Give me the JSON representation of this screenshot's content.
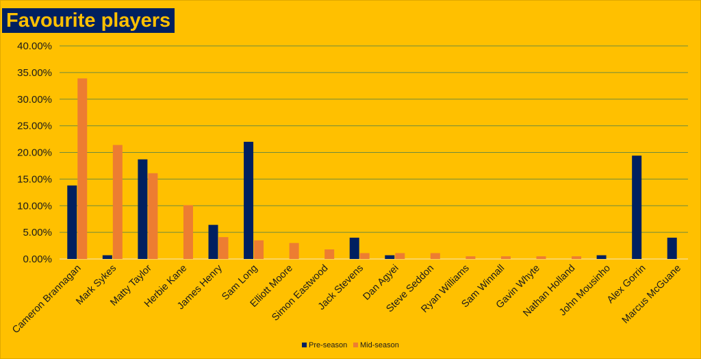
{
  "chart_data": {
    "type": "bar",
    "title": "Favourite players",
    "xlabel": "",
    "ylabel": "",
    "ylim": [
      0,
      40
    ],
    "yticks": [
      "0.00%",
      "5.00%",
      "10.00%",
      "15.00%",
      "20.00%",
      "25.00%",
      "30.00%",
      "35.00%",
      "40.00%"
    ],
    "grid": true,
    "legend_position": "bottom",
    "categories": [
      "Cameron Brannagan",
      "Mark Sykes",
      "Matty Taylor",
      "Herbie Kane",
      "James Henry",
      "Sam Long",
      "Elliott Moore",
      "Simon Eastwood",
      "Jack Stevens",
      "Dan Agyei",
      "Steve Seddon",
      "Ryan Williams",
      "Sam Winnall",
      "Gavin Whyte",
      "Nathan Holland",
      "John Mousinho",
      "Alex Gorrin",
      "Marcus McGuane"
    ],
    "series": [
      {
        "name": "Pre-season",
        "color": "#002060",
        "values": [
          13.8,
          0.7,
          18.7,
          0,
          6.4,
          22.0,
          0,
          0,
          4.0,
          0.7,
          0,
          0,
          0,
          0,
          0,
          0.7,
          19.4,
          4.0
        ]
      },
      {
        "name": "Mid-season",
        "color": "#ED7D31",
        "values": [
          33.9,
          21.4,
          16.1,
          10.1,
          4.1,
          3.5,
          3.0,
          1.8,
          1.1,
          1.1,
          1.1,
          0.5,
          0.5,
          0.5,
          0.5,
          0,
          0,
          0
        ]
      }
    ]
  },
  "colors": {
    "background": "#FFC000",
    "grid": "#6E8B3D"
  }
}
